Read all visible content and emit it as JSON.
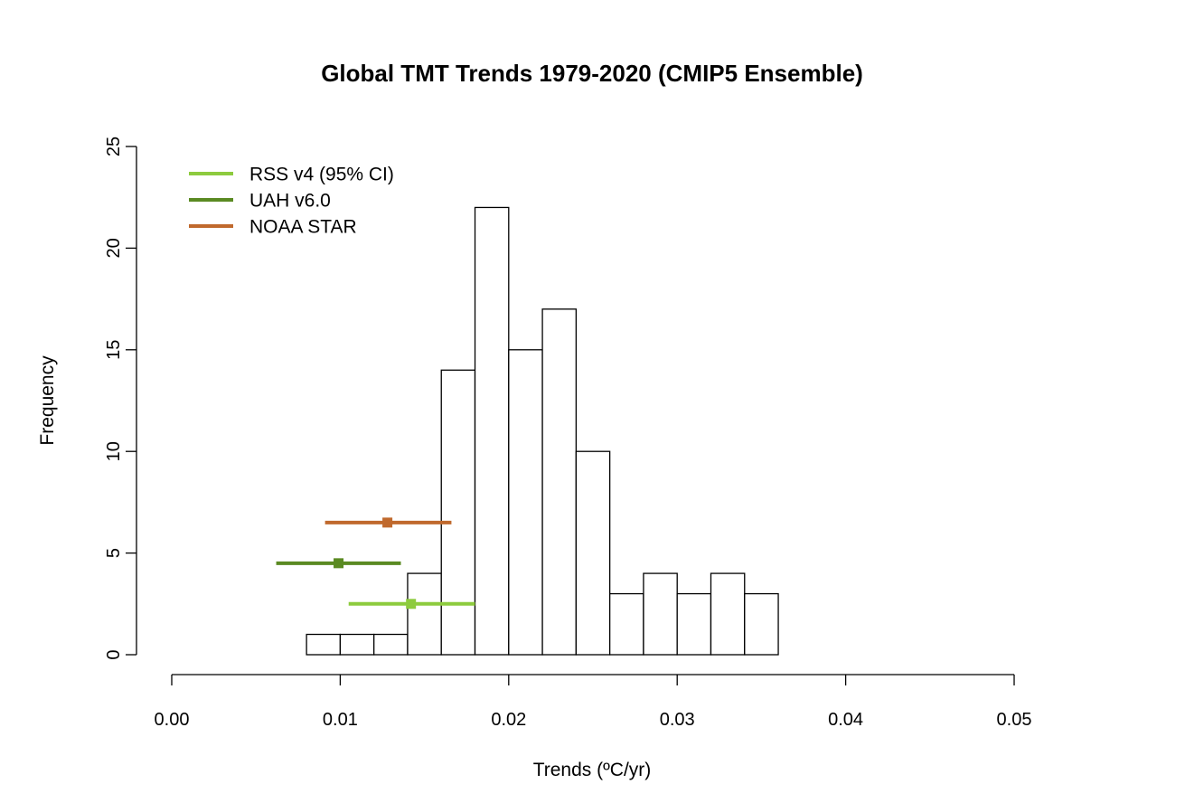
{
  "chart_data": {
    "type": "bar",
    "title": "Global TMT Trends 1979-2020 (CMIP5 Ensemble)",
    "xlabel": "Trends (ºC/yr)",
    "ylabel": "Frequency",
    "xlim": [
      0.0,
      0.05
    ],
    "ylim": [
      0,
      25
    ],
    "x_ticks": [
      "0.00",
      "0.01",
      "0.02",
      "0.03",
      "0.04",
      "0.05"
    ],
    "y_ticks": [
      "0",
      "5",
      "10",
      "15",
      "20",
      "25"
    ],
    "bin_width": 0.002,
    "bins": [
      {
        "start": 0.008,
        "end": 0.01,
        "count": 1
      },
      {
        "start": 0.01,
        "end": 0.012,
        "count": 1
      },
      {
        "start": 0.012,
        "end": 0.014,
        "count": 1
      },
      {
        "start": 0.014,
        "end": 0.016,
        "count": 4
      },
      {
        "start": 0.016,
        "end": 0.018,
        "count": 14
      },
      {
        "start": 0.018,
        "end": 0.02,
        "count": 22
      },
      {
        "start": 0.02,
        "end": 0.022,
        "count": 15
      },
      {
        "start": 0.022,
        "end": 0.024,
        "count": 17
      },
      {
        "start": 0.024,
        "end": 0.026,
        "count": 10
      },
      {
        "start": 0.026,
        "end": 0.028,
        "count": 3
      },
      {
        "start": 0.028,
        "end": 0.03,
        "count": 4
      },
      {
        "start": 0.03,
        "end": 0.032,
        "count": 3
      },
      {
        "start": 0.032,
        "end": 0.034,
        "count": 4
      },
      {
        "start": 0.034,
        "end": 0.036,
        "count": 3
      }
    ],
    "observations": [
      {
        "name": "RSS v4 (95% CI)",
        "color": "#8DCB3E",
        "estimate": 0.0142,
        "ci": [
          0.0105,
          0.018
        ],
        "y": 2.5
      },
      {
        "name": "UAH v6.0",
        "color": "#5A8A22",
        "estimate": 0.0099,
        "ci": [
          0.0062,
          0.0136
        ],
        "y": 4.5
      },
      {
        "name": "NOAA STAR",
        "color": "#C0692D",
        "estimate": 0.0128,
        "ci": [
          0.0091,
          0.0166
        ],
        "y": 6.5
      }
    ],
    "legend": {
      "position": "top-left",
      "entries": [
        "RSS v4 (95% CI)",
        "UAH v6.0",
        "NOAA STAR"
      ]
    },
    "grid": false
  }
}
